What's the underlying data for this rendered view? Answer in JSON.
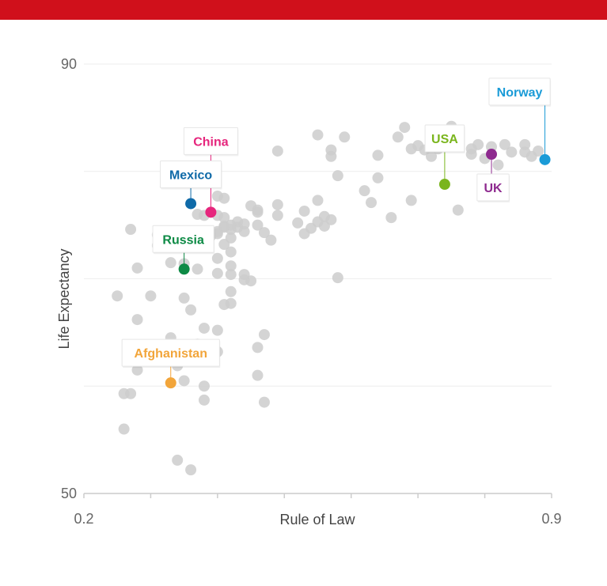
{
  "colors": {
    "header_bar": "#d0101b",
    "background_point": "#cccccc",
    "grid": "#eeeeee",
    "axis": "#cccccc"
  },
  "chart_data": {
    "type": "scatter",
    "xlabel": "Rule of Law",
    "ylabel": "Life Expectancy",
    "xlim": [
      0.2,
      0.9
    ],
    "ylim": [
      50,
      90
    ],
    "x_tick_labels": [
      {
        "value": 0.2,
        "label": "0.2"
      },
      {
        "value": 0.9,
        "label": "0.9"
      }
    ],
    "y_tick_labels": [
      {
        "value": 50,
        "label": "50"
      },
      {
        "value": 90,
        "label": "90"
      }
    ],
    "x_ticks": [
      0.2,
      0.3,
      0.4,
      0.5,
      0.6,
      0.7,
      0.8,
      0.9
    ],
    "gridlines_y": [
      50,
      60,
      70,
      80,
      90
    ],
    "grid": true,
    "highlighted": [
      {
        "name": "Norway",
        "x": 0.89,
        "y": 81.1,
        "color": "#1a9bd7"
      },
      {
        "name": "UK",
        "x": 0.81,
        "y": 81.6,
        "color": "#8e2a8f"
      },
      {
        "name": "USA",
        "x": 0.74,
        "y": 78.8,
        "color": "#7ab51d"
      },
      {
        "name": "China",
        "x": 0.39,
        "y": 76.2,
        "color": "#e6267d"
      },
      {
        "name": "Mexico",
        "x": 0.36,
        "y": 77.0,
        "color": "#0f6aa8"
      },
      {
        "name": "Russia",
        "x": 0.35,
        "y": 70.9,
        "color": "#0d8a45"
      },
      {
        "name": "Afghanistan",
        "x": 0.33,
        "y": 60.3,
        "color": "#f2a53a"
      }
    ],
    "series": [
      {
        "values": [
          [
            0.27,
            74.6
          ],
          [
            0.35,
            68.2
          ],
          [
            0.31,
            73.1
          ],
          [
            0.31,
            74.1
          ],
          [
            0.32,
            74.3
          ],
          [
            0.33,
            71.5
          ],
          [
            0.35,
            71.4
          ],
          [
            0.37,
            70.9
          ],
          [
            0.36,
            67.1
          ],
          [
            0.35,
            63.8
          ],
          [
            0.37,
            63.9
          ],
          [
            0.33,
            64.5
          ],
          [
            0.3,
            68.4
          ],
          [
            0.28,
            71.0
          ],
          [
            0.25,
            68.4
          ],
          [
            0.28,
            66.2
          ],
          [
            0.28,
            61.5
          ],
          [
            0.27,
            59.3
          ],
          [
            0.26,
            59.3
          ],
          [
            0.26,
            56.0
          ],
          [
            0.34,
            61.9
          ],
          [
            0.35,
            60.5
          ],
          [
            0.38,
            60.0
          ],
          [
            0.38,
            58.7
          ],
          [
            0.34,
            53.1
          ],
          [
            0.36,
            52.2
          ],
          [
            0.38,
            65.4
          ],
          [
            0.4,
            65.2
          ],
          [
            0.4,
            63.2
          ],
          [
            0.41,
            67.6
          ],
          [
            0.42,
            67.7
          ],
          [
            0.42,
            68.8
          ],
          [
            0.44,
            69.9
          ],
          [
            0.45,
            69.8
          ],
          [
            0.4,
            70.5
          ],
          [
            0.4,
            71.9
          ],
          [
            0.42,
            70.4
          ],
          [
            0.42,
            71.2
          ],
          [
            0.44,
            70.4
          ],
          [
            0.44,
            74.4
          ],
          [
            0.4,
            74.2
          ],
          [
            0.41,
            74.8
          ],
          [
            0.42,
            75.0
          ],
          [
            0.43,
            75.3
          ],
          [
            0.43,
            74.8
          ],
          [
            0.42,
            73.8
          ],
          [
            0.44,
            75.1
          ],
          [
            0.45,
            76.8
          ],
          [
            0.46,
            76.2
          ],
          [
            0.47,
            74.3
          ],
          [
            0.46,
            75.0
          ],
          [
            0.48,
            73.6
          ],
          [
            0.49,
            75.9
          ],
          [
            0.4,
            77.7
          ],
          [
            0.41,
            77.5
          ],
          [
            0.46,
            76.4
          ],
          [
            0.46,
            63.6
          ],
          [
            0.46,
            61.0
          ],
          [
            0.47,
            58.5
          ],
          [
            0.47,
            64.8
          ],
          [
            0.4,
            74.4
          ],
          [
            0.39,
            74.0
          ],
          [
            0.37,
            76.0
          ],
          [
            0.38,
            75.9
          ],
          [
            0.42,
            74.6
          ],
          [
            0.4,
            75.9
          ],
          [
            0.41,
            74.9
          ],
          [
            0.41,
            75.7
          ],
          [
            0.42,
            72.5
          ],
          [
            0.41,
            73.2
          ],
          [
            0.49,
            81.9
          ],
          [
            0.49,
            76.9
          ],
          [
            0.55,
            75.3
          ],
          [
            0.54,
            74.7
          ],
          [
            0.56,
            74.9
          ],
          [
            0.57,
            75.5
          ],
          [
            0.56,
            75.8
          ],
          [
            0.55,
            77.3
          ],
          [
            0.52,
            75.2
          ],
          [
            0.53,
            74.2
          ],
          [
            0.55,
            83.4
          ],
          [
            0.57,
            81.4
          ],
          [
            0.57,
            82.0
          ],
          [
            0.58,
            79.6
          ],
          [
            0.59,
            83.2
          ],
          [
            0.62,
            78.2
          ],
          [
            0.63,
            77.1
          ],
          [
            0.64,
            79.4
          ],
          [
            0.67,
            83.2
          ],
          [
            0.68,
            84.1
          ],
          [
            0.69,
            82.1
          ],
          [
            0.7,
            82.4
          ],
          [
            0.71,
            82.0
          ],
          [
            0.72,
            81.4
          ],
          [
            0.73,
            82.1
          ],
          [
            0.75,
            84.2
          ],
          [
            0.75,
            83.6
          ],
          [
            0.78,
            81.6
          ],
          [
            0.78,
            82.1
          ],
          [
            0.79,
            82.5
          ],
          [
            0.8,
            81.2
          ],
          [
            0.81,
            82.3
          ],
          [
            0.83,
            82.5
          ],
          [
            0.84,
            81.8
          ],
          [
            0.82,
            80.6
          ],
          [
            0.86,
            82.5
          ],
          [
            0.87,
            81.4
          ],
          [
            0.88,
            81.9
          ],
          [
            0.86,
            81.8
          ],
          [
            0.64,
            81.5
          ],
          [
            0.76,
            76.4
          ],
          [
            0.69,
            77.3
          ],
          [
            0.66,
            75.7
          ],
          [
            0.58,
            70.1
          ],
          [
            0.53,
            76.3
          ]
        ]
      }
    ]
  }
}
